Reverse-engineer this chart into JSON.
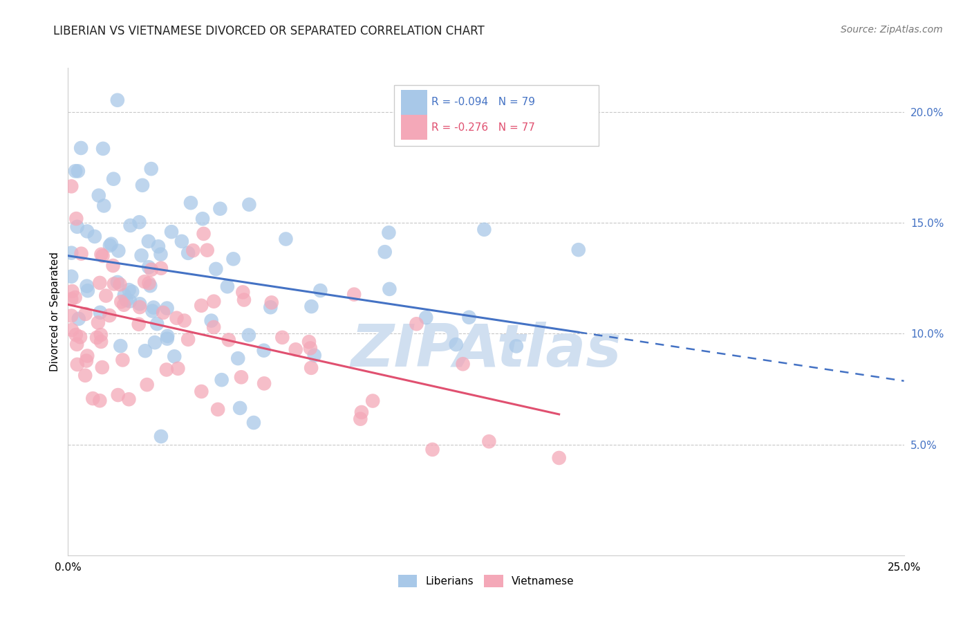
{
  "title": "LIBERIAN VS VIETNAMESE DIVORCED OR SEPARATED CORRELATION CHART",
  "source_text": "Source: ZipAtlas.com",
  "ylabel": "Divorced or Separated",
  "xlim": [
    0.0,
    0.25
  ],
  "ylim": [
    0.0,
    0.22
  ],
  "xticks": [
    0.0,
    0.05,
    0.1,
    0.15,
    0.2,
    0.25
  ],
  "yticks_right": [
    0.05,
    0.1,
    0.15,
    0.2
  ],
  "ytick_labels_right": [
    "5.0%",
    "10.0%",
    "15.0%",
    "20.0%"
  ],
  "xtick_labels": [
    "0.0%",
    "",
    "",
    "",
    "",
    "25.0%"
  ],
  "blue_color": "#a8c8e8",
  "pink_color": "#f4a8b8",
  "blue_line_color": "#4472c4",
  "pink_line_color": "#e05070",
  "background_color": "#ffffff",
  "grid_color": "#c8c8c8",
  "watermark_color": "#d0dff0",
  "title_color": "#222222",
  "right_tick_color": "#4472c4",
  "legend_R1": "R = -0.094",
  "legend_N1": "N = 79",
  "legend_R2": "R = -0.276",
  "legend_N2": "N = 77",
  "legend_label1": "Liberians",
  "legend_label2": "Vietnamese"
}
